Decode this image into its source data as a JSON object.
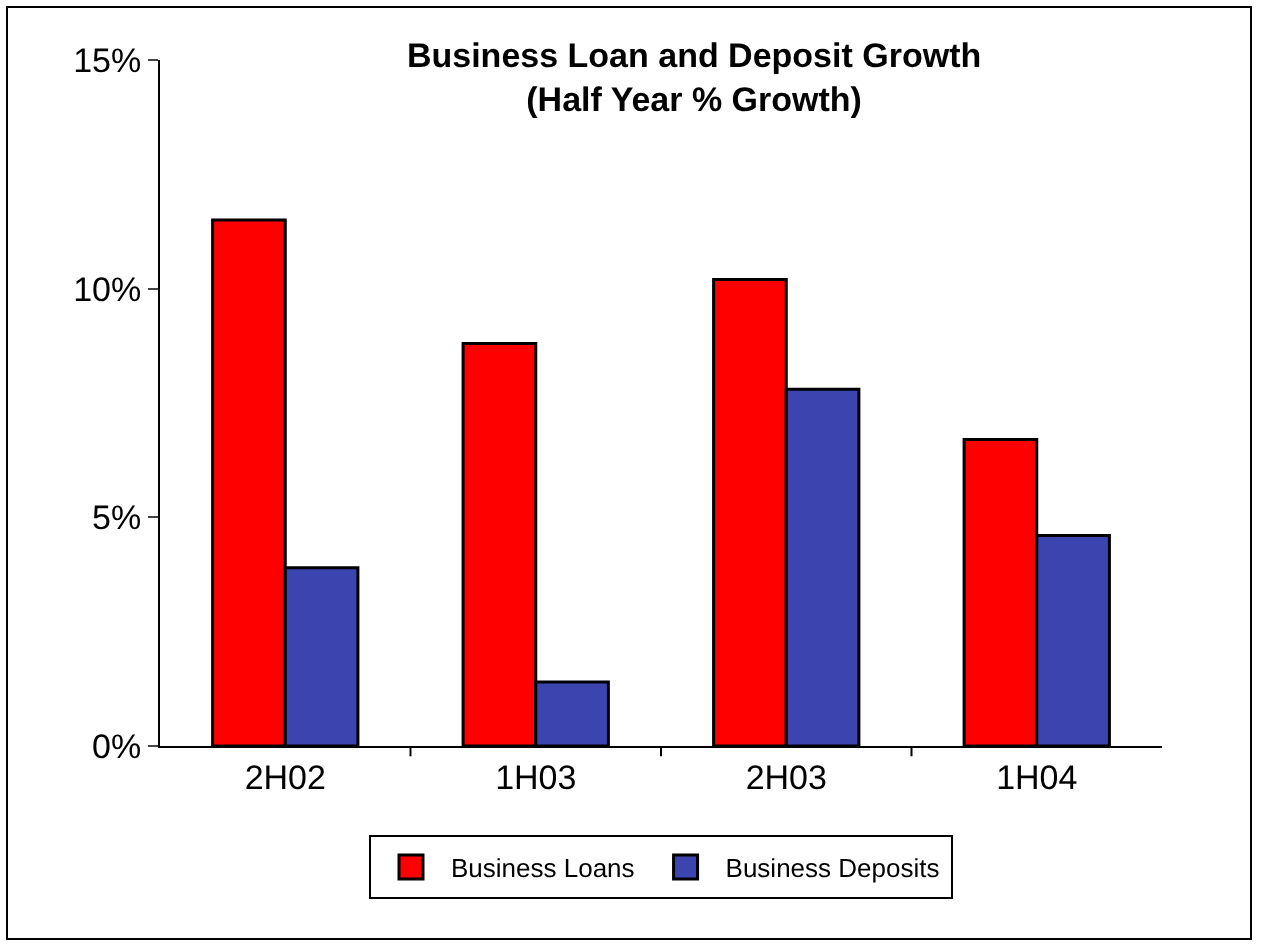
{
  "chart_data": {
    "type": "bar",
    "title": "Business Loan and Deposit Growth",
    "subtitle": "(Half Year % Growth)",
    "categories": [
      "2H02",
      "1H03",
      "2H03",
      "1H04"
    ],
    "series": [
      {
        "name": "Business Loans",
        "color": "#ff0000",
        "values": [
          11.5,
          8.8,
          10.2,
          6.7
        ]
      },
      {
        "name": "Business Deposits",
        "color": "#3c44b0",
        "values": [
          3.9,
          1.4,
          7.8,
          4.6
        ]
      }
    ],
    "ylim": [
      0,
      15
    ],
    "yticks": [
      {
        "value": 0,
        "label": "0%"
      },
      {
        "value": 5,
        "label": "5%"
      },
      {
        "value": 10,
        "label": "10%"
      },
      {
        "value": 15,
        "label": "15%"
      }
    ],
    "grid": false,
    "legend": "bottom"
  }
}
